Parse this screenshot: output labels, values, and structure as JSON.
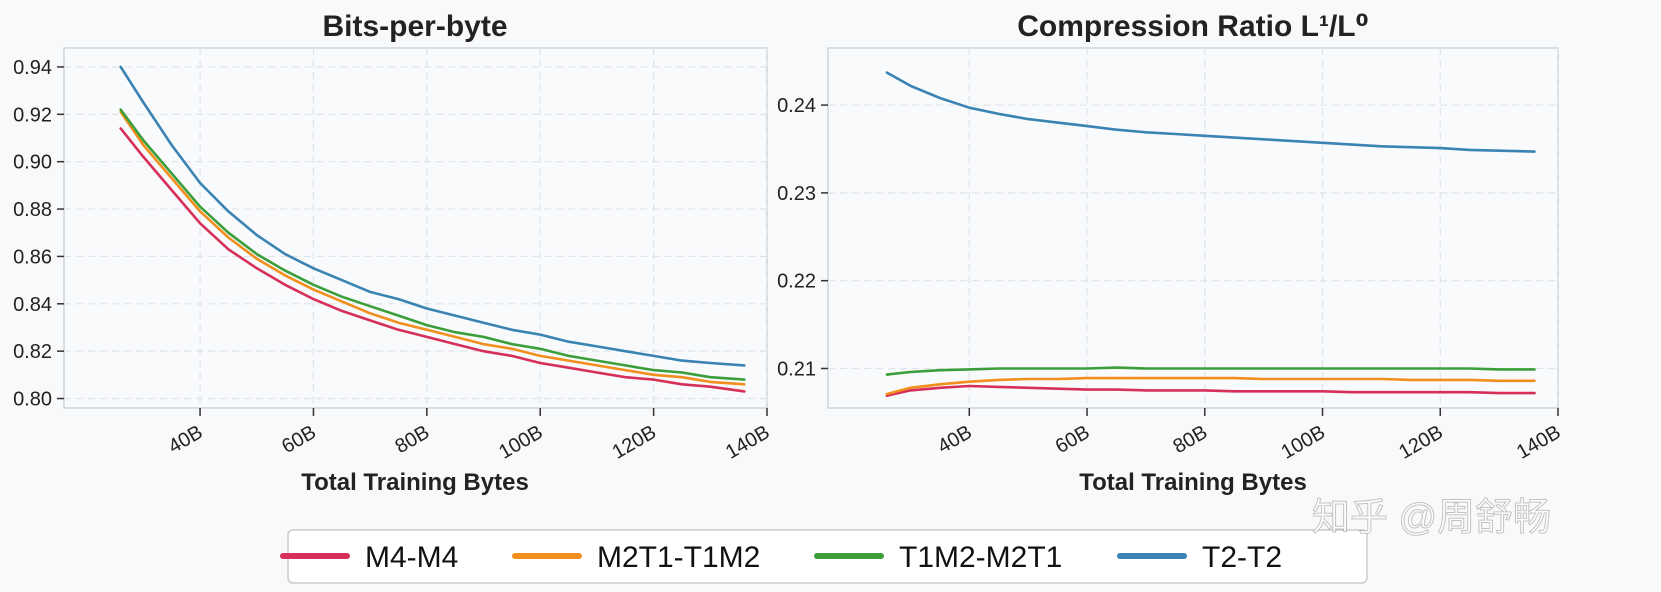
{
  "legend": {
    "items": [
      {
        "label": "M4-M4",
        "color": "#d62f5a"
      },
      {
        "label": "M2T1-T1M2",
        "color": "#f28e1c"
      },
      {
        "label": "T1M2-M2T1",
        "color": "#3c9e3a"
      },
      {
        "label": "T2-T2",
        "color": "#3a83b3"
      }
    ]
  },
  "watermark": "知乎 @周舒畅",
  "chart_data": [
    {
      "type": "line",
      "title": "Bits-per-byte",
      "xlabel": "Total Training Bytes",
      "ylabel": "",
      "xlim": [
        16,
        140
      ],
      "ylim": [
        0.796,
        0.948
      ],
      "xticks": [
        40,
        60,
        80,
        100,
        120,
        140
      ],
      "xtick_labels": [
        "40B",
        "60B",
        "80B",
        "100B",
        "120B",
        "140B"
      ],
      "yticks": [
        0.8,
        0.82,
        0.84,
        0.86,
        0.88,
        0.9,
        0.92,
        0.94
      ],
      "ytick_labels": [
        "0.80",
        "0.82",
        "0.84",
        "0.86",
        "0.88",
        "0.90",
        "0.92",
        "0.94"
      ],
      "grid": true,
      "x": [
        26,
        30,
        35,
        40,
        45,
        50,
        55,
        60,
        65,
        70,
        75,
        80,
        85,
        90,
        95,
        100,
        105,
        110,
        115,
        120,
        125,
        130,
        136
      ],
      "series": [
        {
          "name": "M4-M4",
          "color": "#d62f5a",
          "values": [
            0.914,
            0.902,
            0.888,
            0.874,
            0.863,
            0.855,
            0.848,
            0.842,
            0.837,
            0.833,
            0.829,
            0.826,
            0.823,
            0.82,
            0.818,
            0.815,
            0.813,
            0.811,
            0.809,
            0.808,
            0.806,
            0.805,
            0.803
          ]
        },
        {
          "name": "M2T1-T1M2",
          "color": "#f28e1c",
          "values": [
            0.921,
            0.907,
            0.893,
            0.879,
            0.868,
            0.859,
            0.852,
            0.846,
            0.841,
            0.836,
            0.832,
            0.829,
            0.826,
            0.823,
            0.821,
            0.818,
            0.816,
            0.814,
            0.812,
            0.81,
            0.809,
            0.807,
            0.806
          ]
        },
        {
          "name": "T1M2-M2T1",
          "color": "#3c9e3a",
          "values": [
            0.922,
            0.909,
            0.895,
            0.881,
            0.87,
            0.861,
            0.854,
            0.848,
            0.843,
            0.839,
            0.835,
            0.831,
            0.828,
            0.826,
            0.823,
            0.821,
            0.818,
            0.816,
            0.814,
            0.812,
            0.811,
            0.809,
            0.808
          ]
        },
        {
          "name": "T2-T2",
          "color": "#3a83b3",
          "values": [
            0.94,
            0.925,
            0.907,
            0.891,
            0.879,
            0.869,
            0.861,
            0.855,
            0.85,
            0.845,
            0.842,
            0.838,
            0.835,
            0.832,
            0.829,
            0.827,
            0.824,
            0.822,
            0.82,
            0.818,
            0.816,
            0.815,
            0.814
          ]
        }
      ]
    },
    {
      "type": "line",
      "title": "Compression Ratio L¹/L⁰",
      "xlabel": "Total Training Bytes",
      "ylabel": "",
      "xlim": [
        16,
        140
      ],
      "ylim": [
        0.2055,
        0.2465
      ],
      "xticks": [
        40,
        60,
        80,
        100,
        120,
        140
      ],
      "xtick_labels": [
        "40B",
        "60B",
        "80B",
        "100B",
        "120B",
        "140B"
      ],
      "yticks": [
        0.21,
        0.22,
        0.23,
        0.24
      ],
      "ytick_labels": [
        "0.21",
        "0.22",
        "0.23",
        "0.24"
      ],
      "grid": true,
      "x": [
        26,
        30,
        35,
        40,
        45,
        50,
        55,
        60,
        65,
        70,
        75,
        80,
        85,
        90,
        95,
        100,
        105,
        110,
        115,
        120,
        125,
        130,
        136
      ],
      "series": [
        {
          "name": "M4-M4",
          "color": "#d62f5a",
          "values": [
            0.2069,
            0.2075,
            0.2078,
            0.208,
            0.2079,
            0.2078,
            0.2077,
            0.2076,
            0.2076,
            0.2075,
            0.2075,
            0.2075,
            0.2074,
            0.2074,
            0.2074,
            0.2074,
            0.2073,
            0.2073,
            0.2073,
            0.2073,
            0.2073,
            0.2072,
            0.2072
          ]
        },
        {
          "name": "M2T1-T1M2",
          "color": "#f28e1c",
          "values": [
            0.2071,
            0.2078,
            0.2082,
            0.2085,
            0.2087,
            0.2088,
            0.2088,
            0.2089,
            0.2089,
            0.2089,
            0.2089,
            0.2089,
            0.2089,
            0.2088,
            0.2088,
            0.2088,
            0.2088,
            0.2088,
            0.2087,
            0.2087,
            0.2087,
            0.2086,
            0.2086
          ]
        },
        {
          "name": "T1M2-M2T1",
          "color": "#3c9e3a",
          "values": [
            0.2093,
            0.2096,
            0.2098,
            0.2099,
            0.21,
            0.21,
            0.21,
            0.21,
            0.2101,
            0.21,
            0.21,
            0.21,
            0.21,
            0.21,
            0.21,
            0.21,
            0.21,
            0.21,
            0.21,
            0.21,
            0.21,
            0.2099,
            0.2099
          ]
        },
        {
          "name": "T2-T2",
          "color": "#3a83b3",
          "values": [
            0.2437,
            0.2422,
            0.2408,
            0.2397,
            0.239,
            0.2384,
            0.238,
            0.2376,
            0.2372,
            0.2369,
            0.2367,
            0.2365,
            0.2363,
            0.2361,
            0.2359,
            0.2357,
            0.2355,
            0.2353,
            0.2352,
            0.2351,
            0.2349,
            0.2348,
            0.2347
          ]
        }
      ]
    }
  ]
}
